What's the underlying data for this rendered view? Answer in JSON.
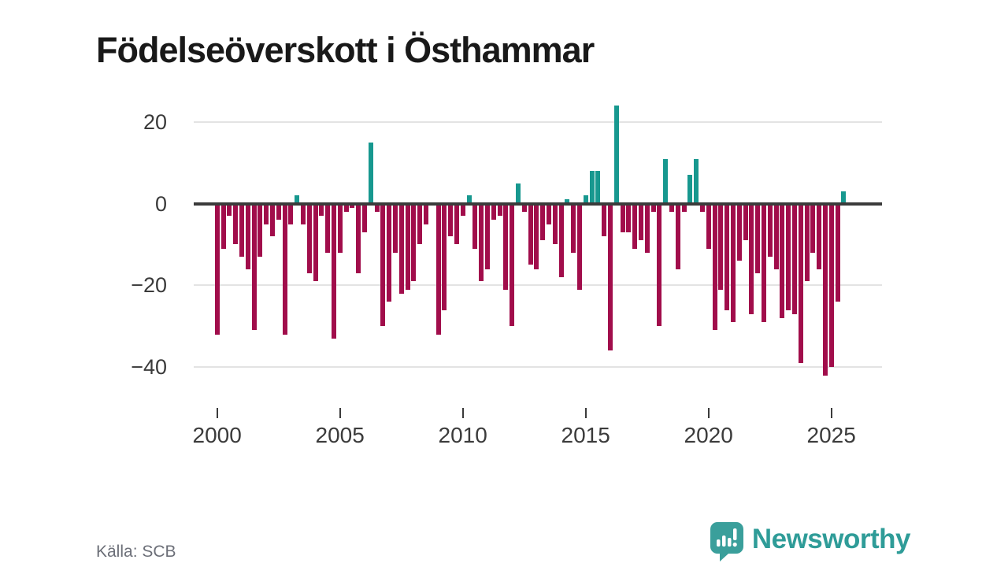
{
  "header": {
    "title": "Födelseöverskott i Östhammar"
  },
  "source": {
    "label": "Källa: SCB"
  },
  "branding": {
    "name": "Newsworthy",
    "icon": "newsworthy-speech-bubble-bar-chart-icon",
    "color": "#2f9c98"
  },
  "colors": {
    "background": "#ffffff",
    "positive_bar": "#17988f",
    "negative_bar": "#a10d4b",
    "gridline": "#e3e3e3",
    "zero_line": "#3b3b3b",
    "axis_text": "#3b3b3b",
    "title_text": "#191919",
    "source_text": "#6c6f78"
  },
  "chart_data": {
    "type": "bar",
    "title": "Födelseöverskott i Östhammar",
    "frequency": "quarterly",
    "start_period": "2000-Q1",
    "end_period": "2025-Q3",
    "values": [
      -32,
      -11,
      -3,
      -10,
      -13,
      -16,
      -31,
      -13,
      -5,
      -8,
      -4,
      -32,
      -5,
      2,
      -5,
      -17,
      -19,
      -3,
      -12,
      -33,
      -12,
      -2,
      -1,
      -17,
      -7,
      15,
      -2,
      -30,
      -24,
      -12,
      -22,
      -21,
      -19,
      -10,
      -5,
      0,
      -32,
      -26,
      -8,
      -10,
      -3,
      2,
      -11,
      -19,
      -16,
      -4,
      -3,
      -21,
      -30,
      5,
      -2,
      -15,
      -16,
      -9,
      -5,
      -10,
      -18,
      1,
      -12,
      -21,
      2,
      8,
      8,
      -8,
      -36,
      24,
      -7,
      -7,
      -11,
      -9,
      -12,
      -2,
      -30,
      11,
      -2,
      -16,
      -2,
      7,
      11,
      -2,
      -11,
      -31,
      -21,
      -26,
      -29,
      -14,
      -9,
      -27,
      -17,
      -29,
      -13,
      -16,
      -28,
      -26,
      -27,
      -39,
      -19,
      -12,
      -16,
      -42,
      -40,
      -24,
      3
    ],
    "y_ticks": [
      20,
      0,
      -20,
      -40
    ],
    "y_tick_labels": [
      "20",
      "0",
      "−20",
      "−40"
    ],
    "x_tick_years": [
      2000,
      2005,
      2010,
      2015,
      2020,
      2025
    ],
    "x_tick_labels": [
      "2000",
      "2005",
      "2010",
      "2015",
      "2020",
      "2025"
    ],
    "ylim": [
      -48,
      26
    ],
    "grid": "horizontal",
    "legend": "none",
    "positive_color": "#17988f",
    "negative_color": "#a10d4b"
  }
}
